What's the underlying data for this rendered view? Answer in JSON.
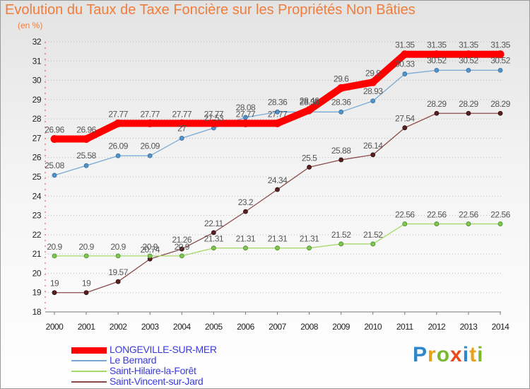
{
  "chart_data": {
    "type": "line",
    "title": "Evolution du Taux de Taxe Foncière sur les Propriétés Non Bâties",
    "subtitle": "(en %)",
    "x": [
      "2000",
      "2001",
      "2002",
      "2003",
      "2004",
      "2005",
      "2006",
      "2007",
      "2008",
      "2009",
      "2010",
      "2011",
      "2012",
      "2013",
      "2014"
    ],
    "ylim": [
      18,
      32
    ],
    "yticks": [
      18,
      19,
      20,
      21,
      22,
      23,
      24,
      25,
      26,
      27,
      28,
      29,
      30,
      31,
      32
    ],
    "grid": "horizontal-dotted",
    "legend_position": "bottom-left",
    "series": [
      {
        "name": "LONGEVILLE-SUR-MER",
        "color": "#ff0000",
        "marker_color": "#ff0000",
        "values": [
          26.96,
          26.96,
          27.77,
          27.77,
          27.77,
          27.77,
          27.77,
          27.77,
          28.46,
          29.6,
          29.9,
          31.35,
          31.35,
          31.35,
          31.35
        ],
        "labels": [
          "26.96",
          "26.96",
          "27.77",
          "27.77",
          "27.77",
          "27.77",
          "27.77",
          "27.77",
          "28.46",
          "29.6",
          "29.9",
          "31.35",
          "31.35",
          "31.35",
          "31.35"
        ]
      },
      {
        "name": "Le Bernard",
        "color": "#78a9d4",
        "marker_color": "#4f94cd",
        "values": [
          25.08,
          25.58,
          26.09,
          26.09,
          27,
          27.53,
          28.08,
          28.36,
          28.36,
          28.36,
          28.93,
          30.33,
          30.52,
          30.52,
          30.52
        ],
        "labels": [
          "25.08",
          "25.58",
          "26.09",
          "26.09",
          "27",
          "27.53",
          "28.08",
          "28.36",
          "28.36",
          "28.36",
          "28.93",
          "30.33",
          "30.52",
          "30.52",
          "30.52"
        ]
      },
      {
        "name": "Saint-Hilaire-la-Forêt",
        "color": "#a6d96a",
        "marker_color": "#7ec850",
        "values": [
          20.9,
          20.9,
          20.9,
          20.9,
          20.9,
          21.31,
          21.31,
          21.31,
          21.31,
          21.52,
          21.52,
          22.56,
          22.56,
          22.56,
          22.56
        ],
        "labels": [
          "20.9",
          "20.9",
          "20.9",
          "20.9",
          "20.9",
          "21.31",
          "21.31",
          "21.31",
          "21.31",
          "21.52",
          "21.52",
          "22.56",
          "22.56",
          "22.56",
          "22.56"
        ]
      },
      {
        "name": "Saint-Vincent-sur-Jard",
        "color": "#8b4a4a",
        "marker_color": "#5c1f1f",
        "values": [
          19,
          19,
          19.57,
          20.74,
          21.26,
          22.11,
          23.2,
          24.34,
          25.5,
          25.88,
          26.14,
          27.54,
          28.29,
          28.29,
          28.29
        ],
        "labels": [
          "19",
          "19",
          "19.57",
          "20.74",
          "21.26",
          "22.11",
          "23.2",
          "24.34",
          "25.5",
          "25.88",
          "26.14",
          "27.54",
          "28.29",
          "28.29",
          "28.29"
        ]
      }
    ]
  },
  "logo": {
    "letters": [
      "P",
      "r",
      "o",
      "x",
      "i",
      "t",
      "i"
    ],
    "colors": [
      "#2f86c9",
      "#e8a21a",
      "#7cb82f",
      "#e84a1a",
      "#2f86c9",
      "#e8a21a",
      "#7cb82f"
    ]
  }
}
